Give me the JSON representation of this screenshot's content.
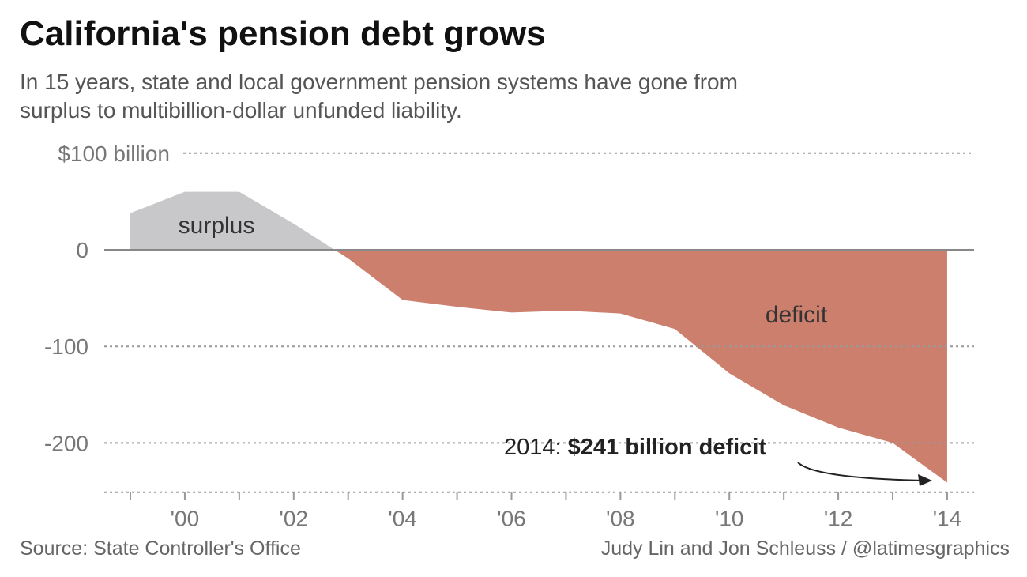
{
  "chart_data": {
    "type": "area",
    "title": "California's pension debt grows",
    "subtitle": "In 15 years, state and local government pension systems have gone from surplus to multibillion-dollar unfunded liability.",
    "x": [
      1999,
      2000,
      2001,
      2002,
      2003,
      2004,
      2005,
      2006,
      2007,
      2008,
      2009,
      2010,
      2011,
      2012,
      2013,
      2014
    ],
    "values": [
      38,
      60,
      60,
      27,
      -9,
      -52,
      -59,
      -65,
      -63,
      -66,
      -82,
      -128,
      -161,
      -184,
      -200,
      -241
    ],
    "ylim": [
      -251,
      100
    ],
    "yticks": [
      {
        "v": 100,
        "label": "$100 billion"
      },
      {
        "v": 0,
        "label": "0"
      },
      {
        "v": -100,
        "label": "-100"
      },
      {
        "v": -200,
        "label": "-200"
      }
    ],
    "xticks": [
      {
        "v": 2000,
        "label": "'00"
      },
      {
        "v": 2002,
        "label": "'02"
      },
      {
        "v": 2004,
        "label": "'04"
      },
      {
        "v": 2006,
        "label": "'06"
      },
      {
        "v": 2008,
        "label": "'08"
      },
      {
        "v": 2010,
        "label": "'10"
      },
      {
        "v": 2012,
        "label": "'12"
      },
      {
        "v": 2014,
        "label": "'14"
      }
    ],
    "labels": {
      "surplus": "surplus",
      "deficit": "deficit"
    },
    "annotation": {
      "prefix": "2014: ",
      "bold": "$241 billion deficit"
    },
    "colors": {
      "surplus": "#c8c8ca",
      "deficit": "#cd7f6e"
    }
  },
  "source": "Source: State Controller's Office",
  "credit": "Judy Lin and Jon Schleuss / @latimesgraphics"
}
